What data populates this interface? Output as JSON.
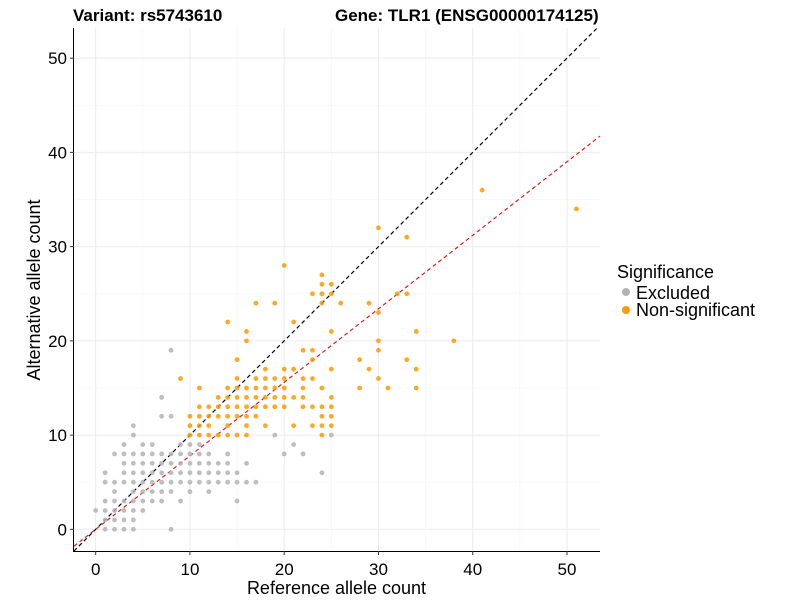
{
  "chart_data": {
    "type": "scatter",
    "title_left": "Variant: rs5743610",
    "title_right": "Gene: TLR1 (ENSG00000174125)",
    "xlabel": "Reference allele count",
    "ylabel": "Alternative allele count",
    "xlim": [
      -2.3,
      53.5
    ],
    "ylim": [
      -2.3,
      53.2
    ],
    "x_ticks": [
      0,
      10,
      20,
      30,
      40,
      50
    ],
    "y_ticks": [
      0,
      10,
      20,
      30,
      40,
      50
    ],
    "grid": true,
    "legend": {
      "title": "Significance",
      "position": "right",
      "entries": [
        {
          "label": "Excluded",
          "color": "#b3b3b3"
        },
        {
          "label": "Non-significant",
          "color": "#ff9900"
        }
      ]
    },
    "reference_lines": [
      {
        "style": "dashed",
        "color": "#000000",
        "slope": 1,
        "intercept": 0
      },
      {
        "style": "dashed",
        "color": "#e41a1c",
        "slope": 0.78,
        "intercept": 0
      }
    ],
    "series": [
      {
        "name": "Excluded",
        "color": "#b3b3b3",
        "points": [
          [
            0,
            2
          ],
          [
            1,
            0
          ],
          [
            1,
            1
          ],
          [
            1,
            2
          ],
          [
            1,
            3
          ],
          [
            1,
            5
          ],
          [
            1,
            6
          ],
          [
            2,
            0
          ],
          [
            2,
            1
          ],
          [
            2,
            2
          ],
          [
            2,
            3
          ],
          [
            2,
            4
          ],
          [
            2,
            5
          ],
          [
            2,
            8
          ],
          [
            3,
            0
          ],
          [
            3,
            1
          ],
          [
            3,
            2
          ],
          [
            3,
            3
          ],
          [
            3,
            5
          ],
          [
            3,
            6
          ],
          [
            3,
            7
          ],
          [
            3,
            8
          ],
          [
            3,
            9
          ],
          [
            4,
            0
          ],
          [
            4,
            1
          ],
          [
            4,
            2
          ],
          [
            4,
            3
          ],
          [
            4,
            4
          ],
          [
            4,
            5
          ],
          [
            4,
            6
          ],
          [
            4,
            7
          ],
          [
            4,
            8
          ],
          [
            4,
            10
          ],
          [
            4,
            11
          ],
          [
            5,
            2
          ],
          [
            5,
            3
          ],
          [
            5,
            4
          ],
          [
            5,
            5
          ],
          [
            5,
            6
          ],
          [
            5,
            7
          ],
          [
            5,
            8
          ],
          [
            5,
            9
          ],
          [
            6,
            3
          ],
          [
            6,
            4
          ],
          [
            6,
            5
          ],
          [
            6,
            6
          ],
          [
            6,
            7
          ],
          [
            6,
            8
          ],
          [
            6,
            9
          ],
          [
            7,
            3
          ],
          [
            7,
            4
          ],
          [
            7,
            5
          ],
          [
            7,
            6
          ],
          [
            7,
            7
          ],
          [
            7,
            8
          ],
          [
            7,
            12
          ],
          [
            7,
            14
          ],
          [
            8,
            0
          ],
          [
            8,
            4
          ],
          [
            8,
            5
          ],
          [
            8,
            6
          ],
          [
            8,
            7
          ],
          [
            8,
            8
          ],
          [
            8,
            12
          ],
          [
            8,
            19
          ],
          [
            9,
            3
          ],
          [
            9,
            5
          ],
          [
            9,
            6
          ],
          [
            9,
            7
          ],
          [
            9,
            8
          ],
          [
            9,
            9
          ],
          [
            10,
            4
          ],
          [
            10,
            5
          ],
          [
            10,
            6
          ],
          [
            10,
            7
          ],
          [
            10,
            8
          ],
          [
            10,
            9
          ],
          [
            11,
            5
          ],
          [
            11,
            6
          ],
          [
            11,
            7
          ],
          [
            11,
            8
          ],
          [
            11,
            9
          ],
          [
            12,
            4
          ],
          [
            12,
            5
          ],
          [
            12,
            6
          ],
          [
            12,
            7
          ],
          [
            12,
            8
          ],
          [
            13,
            5
          ],
          [
            13,
            6
          ],
          [
            13,
            7
          ],
          [
            14,
            5
          ],
          [
            14,
            6
          ],
          [
            14,
            7
          ],
          [
            14,
            8
          ],
          [
            15,
            3
          ],
          [
            15,
            5
          ],
          [
            15,
            6
          ],
          [
            16,
            5
          ],
          [
            16,
            7
          ],
          [
            17,
            5
          ],
          [
            19,
            10
          ],
          [
            20,
            8
          ],
          [
            21,
            9
          ],
          [
            22,
            8
          ],
          [
            24,
            6
          ],
          [
            25,
            10
          ]
        ]
      },
      {
        "name": "Non-significant",
        "color": "#ff9900",
        "points": [
          [
            9,
            16
          ],
          [
            10,
            10
          ],
          [
            10,
            11
          ],
          [
            10,
            12
          ],
          [
            11,
            10
          ],
          [
            11,
            11
          ],
          [
            11,
            12
          ],
          [
            11,
            13
          ],
          [
            11,
            15
          ],
          [
            12,
            10
          ],
          [
            12,
            11
          ],
          [
            12,
            12
          ],
          [
            12,
            13
          ],
          [
            13,
            10
          ],
          [
            13,
            12
          ],
          [
            13,
            13
          ],
          [
            13,
            14
          ],
          [
            14,
            10
          ],
          [
            14,
            11
          ],
          [
            14,
            12
          ],
          [
            14,
            13
          ],
          [
            14,
            14
          ],
          [
            14,
            15
          ],
          [
            14,
            22
          ],
          [
            15,
            10
          ],
          [
            15,
            12
          ],
          [
            15,
            13
          ],
          [
            15,
            14
          ],
          [
            15,
            15
          ],
          [
            15,
            16
          ],
          [
            15,
            18
          ],
          [
            16,
            10
          ],
          [
            16,
            11
          ],
          [
            16,
            12
          ],
          [
            16,
            13
          ],
          [
            16,
            14
          ],
          [
            16,
            15
          ],
          [
            16,
            20
          ],
          [
            16,
            21
          ],
          [
            17,
            12
          ],
          [
            17,
            13
          ],
          [
            17,
            14
          ],
          [
            17,
            15
          ],
          [
            17,
            16
          ],
          [
            17,
            24
          ],
          [
            18,
            11
          ],
          [
            18,
            13
          ],
          [
            18,
            14
          ],
          [
            18,
            15
          ],
          [
            18,
            16
          ],
          [
            18,
            17
          ],
          [
            19,
            13
          ],
          [
            19,
            14
          ],
          [
            19,
            15
          ],
          [
            19,
            16
          ],
          [
            19,
            24
          ],
          [
            20,
            13
          ],
          [
            20,
            14
          ],
          [
            20,
            15
          ],
          [
            20,
            16
          ],
          [
            20,
            17
          ],
          [
            20,
            28
          ],
          [
            21,
            11
          ],
          [
            21,
            14
          ],
          [
            21,
            17
          ],
          [
            21,
            22
          ],
          [
            22,
            13
          ],
          [
            22,
            14
          ],
          [
            22,
            15
          ],
          [
            22,
            16
          ],
          [
            22,
            19
          ],
          [
            23,
            11
          ],
          [
            23,
            13
          ],
          [
            23,
            16
          ],
          [
            23,
            18
          ],
          [
            23,
            19
          ],
          [
            23,
            25
          ],
          [
            24,
            10
          ],
          [
            24,
            11
          ],
          [
            24,
            12
          ],
          [
            24,
            13
          ],
          [
            24,
            15
          ],
          [
            24,
            24
          ],
          [
            24,
            25
          ],
          [
            24,
            26
          ],
          [
            24,
            27
          ],
          [
            25,
            11
          ],
          [
            25,
            12
          ],
          [
            25,
            13
          ],
          [
            25,
            14
          ],
          [
            25,
            17
          ],
          [
            25,
            21
          ],
          [
            25,
            25
          ],
          [
            25,
            26
          ],
          [
            26,
            24
          ],
          [
            28,
            15
          ],
          [
            28,
            18
          ],
          [
            29,
            17
          ],
          [
            29,
            24
          ],
          [
            30,
            16
          ],
          [
            30,
            19
          ],
          [
            30,
            20
          ],
          [
            30,
            23
          ],
          [
            30,
            32
          ],
          [
            31,
            15
          ],
          [
            32,
            25
          ],
          [
            33,
            18
          ],
          [
            33,
            25
          ],
          [
            33,
            31
          ],
          [
            34,
            15
          ],
          [
            34,
            17
          ],
          [
            34,
            21
          ],
          [
            38,
            20
          ],
          [
            41,
            36
          ],
          [
            51,
            34
          ]
        ]
      }
    ]
  }
}
